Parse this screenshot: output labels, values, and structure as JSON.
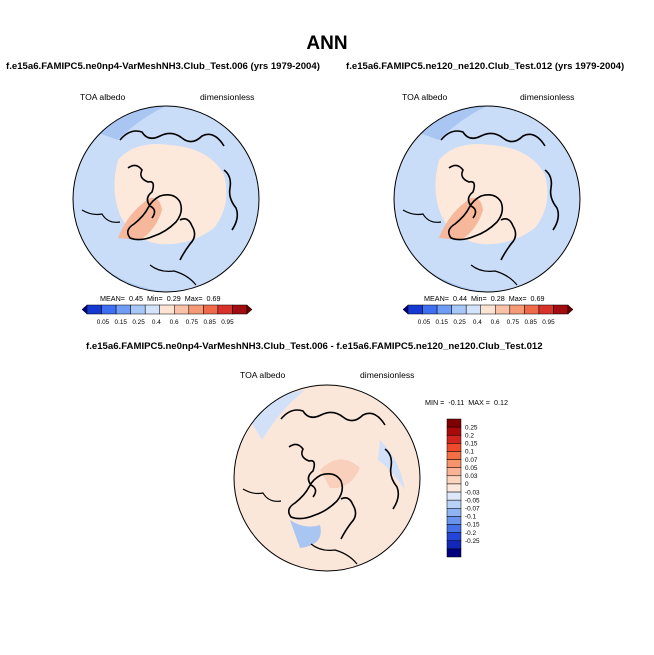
{
  "title": "ANN",
  "panels": [
    {
      "title": "f.e15a6.FAMIPC5.ne0np4-VarMeshNH3.Club_Test.006 (yrs 1979-2004)",
      "left_label": "TOA albedo",
      "right_label": "dimensionless",
      "stats": {
        "mean_label": "MEAN=",
        "mean": "0.45",
        "min_label": "Min=",
        "min": "0.29",
        "max_label": "Max=",
        "max": "0.69"
      }
    },
    {
      "title": "f.e15a6.FAMIPC5.ne120_ne120.Club_Test.012 (yrs 1979-2004)",
      "left_label": "TOA albedo",
      "right_label": "dimensionless",
      "stats": {
        "mean_label": "MEAN=",
        "mean": "0.44",
        "min_label": "Min=",
        "min": "0.28",
        "max_label": "Max=",
        "max": "0.69"
      }
    }
  ],
  "diff_panel": {
    "title": "f.e15a6.FAMIPC5.ne0np4-VarMeshNH3.Club_Test.006 - f.e15a6.FAMIPC5.ne120_ne120.Club_Test.012",
    "left_label": "TOA albedo",
    "right_label": "dimensionless",
    "stats": {
      "min_label": "MIN =",
      "min": "-0.11",
      "max_label": "MAX =",
      "max": "0.12"
    }
  },
  "chart_data": [
    {
      "type": "heatmap",
      "title": "f.e15a6.FAMIPC5.ne0np4-VarMeshNH3.Club_Test.006 (yrs 1979-2004)",
      "variable": "TOA albedo",
      "units": "dimensionless",
      "colorbar_levels": [
        "0.05",
        "0.15",
        "0.25",
        "0.4",
        "0.6",
        "0.75",
        "0.85",
        "0.95"
      ],
      "colorbar_colors": [
        "#00007f",
        "#1339d1",
        "#3e6ff0",
        "#6f9cf5",
        "#a7c7f8",
        "#d2e3fb",
        "#fde3d2",
        "#f9c2a8",
        "#f59a76",
        "#ee6a4b",
        "#d8332a",
        "#a10d10",
        "#6b0000"
      ],
      "mean": 0.45,
      "min": 0.29,
      "max": 0.69
    },
    {
      "type": "heatmap",
      "title": "f.e15a6.FAMIPC5.ne120_ne120.Club_Test.012 (yrs 1979-2004)",
      "variable": "TOA albedo",
      "units": "dimensionless",
      "colorbar_levels": [
        "0.05",
        "0.15",
        "0.25",
        "0.4",
        "0.6",
        "0.75",
        "0.85",
        "0.95"
      ],
      "colorbar_colors": [
        "#00007f",
        "#1339d1",
        "#3e6ff0",
        "#6f9cf5",
        "#a7c7f8",
        "#d2e3fb",
        "#fde3d2",
        "#f9c2a8",
        "#f59a76",
        "#ee6a4b",
        "#d8332a",
        "#a10d10",
        "#6b0000"
      ],
      "mean": 0.44,
      "min": 0.28,
      "max": 0.69
    },
    {
      "type": "heatmap",
      "title": "f.e15a6.FAMIPC5.ne0np4-VarMeshNH3.Club_Test.006 - f.e15a6.FAMIPC5.ne120_ne120.Club_Test.012",
      "variable": "TOA albedo",
      "units": "dimensionless",
      "colorbar_levels": [
        "0.25",
        "0.2",
        "0.15",
        "0.1",
        "0.07",
        "0.05",
        "0.03",
        "0",
        "-0.03",
        "-0.05",
        "-0.07",
        "-0.1",
        "-0.15",
        "-0.2",
        "-0.25"
      ],
      "colorbar_colors": [
        "#7f0000",
        "#a80a0a",
        "#d2241e",
        "#ee4a2b",
        "#f46f43",
        "#f7936a",
        "#f9b394",
        "#fcd5bf",
        "#fce9dd",
        "#dde9fa",
        "#b8d1f6",
        "#8fb3f3",
        "#6a93ee",
        "#4471e8",
        "#2446d8",
        "#1226b8",
        "#00007f"
      ],
      "min": -0.11,
      "max": 0.12
    }
  ]
}
